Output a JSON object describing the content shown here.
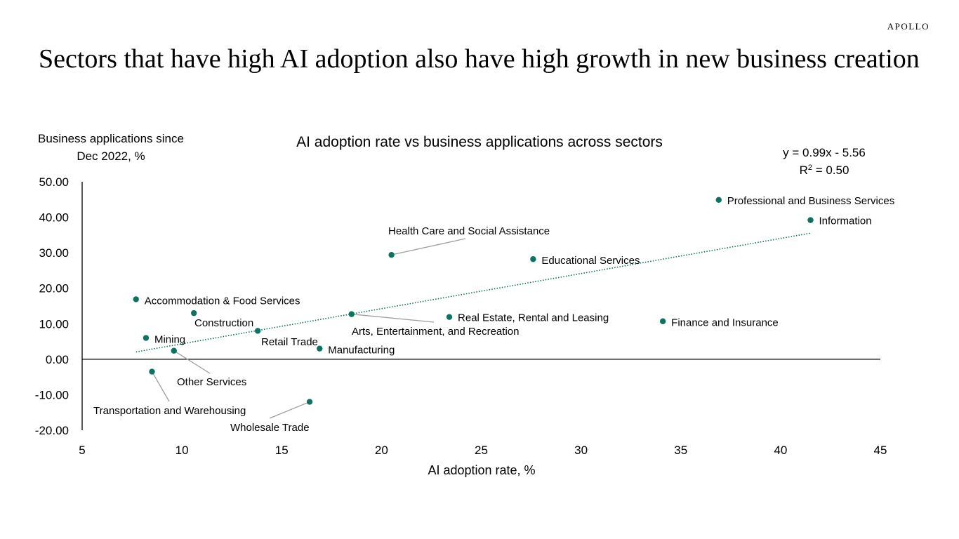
{
  "brand": "APOLLO",
  "headline": "Sectors that have high AI adoption also have high growth in new business creation",
  "colors": {
    "accent": "#0b7360",
    "leader": "#9e9e9e",
    "axis": "#000000"
  },
  "chart_data": {
    "type": "scatter",
    "title": "AI adoption rate vs business applications across sectors",
    "xlabel": "AI adoption rate, %",
    "ylabel_lines": [
      "Business applications since",
      "Dec 2022, %"
    ],
    "xlim": [
      5,
      45
    ],
    "ylim": [
      -20,
      50
    ],
    "xticks": [
      5,
      10,
      15,
      20,
      25,
      30,
      35,
      40,
      45
    ],
    "yticks": [
      50,
      40,
      30,
      20,
      10,
      0,
      -10,
      -20
    ],
    "ytick_labels": [
      "50.00",
      "40.00",
      "30.00",
      "20.00",
      "10.00",
      "0.00",
      "-10.00",
      "-20.00"
    ],
    "grid": false,
    "trendline": {
      "equation": "y = 0.99x - 5.56",
      "r2_base": "R",
      "r2_sup": "2",
      "r2_rest": " = 0.50",
      "x_from": 7.7,
      "x_to": 41.5,
      "style": "dotted"
    },
    "points": [
      {
        "label": "Professional and Business Services",
        "x": 36.9,
        "y": 44.9
      },
      {
        "label": "Information",
        "x": 41.5,
        "y": 39.2
      },
      {
        "label": "Health Care and Social Assistance",
        "x": 20.5,
        "y": 29.4
      },
      {
        "label": "Educational Services",
        "x": 27.6,
        "y": 28.2
      },
      {
        "label": "Accommodation & Food Services",
        "x": 7.7,
        "y": 16.9
      },
      {
        "label": "Construction",
        "x": 10.6,
        "y": 13.0
      },
      {
        "label": "Arts, Entertainment, and Recreation",
        "x": 18.5,
        "y": 12.7
      },
      {
        "label": "Real Estate, Rental and Leasing",
        "x": 23.4,
        "y": 11.9
      },
      {
        "label": "Finance and Insurance",
        "x": 34.1,
        "y": 10.7
      },
      {
        "label": "Retail Trade",
        "x": 13.8,
        "y": 8.0
      },
      {
        "label": "Mining",
        "x": 8.2,
        "y": 6.0
      },
      {
        "label": "Manufacturing",
        "x": 16.9,
        "y": 3.0
      },
      {
        "label": "Other Services",
        "x": 9.6,
        "y": 2.4
      },
      {
        "label": "Transportation and Warehousing",
        "x": 8.5,
        "y": -3.5
      },
      {
        "label": "Wholesale Trade",
        "x": 16.4,
        "y": -12.0
      }
    ]
  }
}
